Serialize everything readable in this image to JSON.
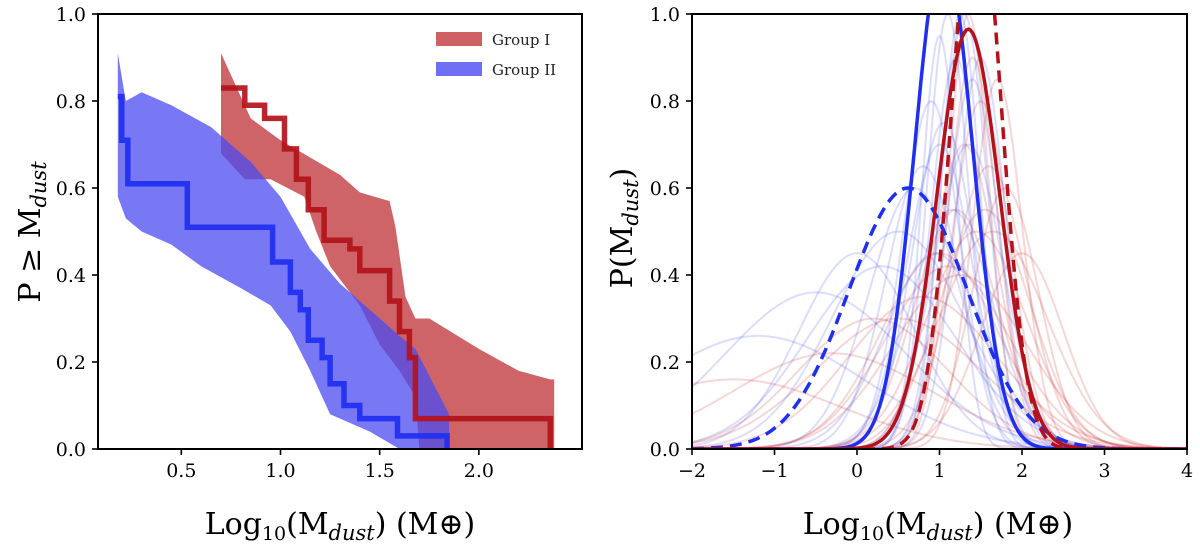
{
  "chart_data": [
    {
      "type": "line",
      "title": "",
      "xlabel": "Log10(Mdust) (M⊕)",
      "xlabel_parts": {
        "base": "Log",
        "sub": "10",
        "open": "(M",
        "italic_sub": "dust",
        "close": ") (M⊕)"
      },
      "ylabel": "P ≥ Mdust",
      "ylabel_parts": {
        "base": "P ≥ M",
        "italic_sub": "dust"
      },
      "xlim": [
        0.08,
        2.52
      ],
      "ylim": [
        0.0,
        1.0
      ],
      "xticks": [
        0.5,
        1.0,
        1.5,
        2.0
      ],
      "xtick_labels": [
        "0.5",
        "1.0",
        "1.5",
        "2.0"
      ],
      "yticks": [
        0.0,
        0.2,
        0.4,
        0.6,
        0.8,
        1.0
      ],
      "ytick_labels": [
        "0.0",
        "0.2",
        "0.4",
        "0.6",
        "0.8",
        "1.0"
      ],
      "legend_position": "top-right",
      "legend": [
        {
          "name": "Group I",
          "color": "#c0393c"
        },
        {
          "name": "Group II",
          "color": "#4b4bf2"
        }
      ],
      "series": [
        {
          "name": "Group I",
          "color": "#b3121a",
          "band_color": "#c0393c",
          "band_upper": [
            [
              0.7,
              0.91
            ],
            [
              0.85,
              0.76
            ],
            [
              1.0,
              0.71
            ],
            [
              1.15,
              0.67
            ],
            [
              1.3,
              0.63
            ],
            [
              1.4,
              0.59
            ],
            [
              1.55,
              0.57
            ],
            [
              1.58,
              0.51
            ],
            [
              1.63,
              0.35
            ],
            [
              1.68,
              0.3
            ],
            [
              1.75,
              0.3
            ],
            [
              2.0,
              0.23
            ],
            [
              2.2,
              0.18
            ],
            [
              2.36,
              0.16
            ],
            [
              2.38,
              0.16
            ],
            [
              2.38,
              0.0
            ]
          ],
          "band_lower": [
            [
              2.37,
              0.0
            ],
            [
              1.7,
              0.0
            ],
            [
              1.68,
              0.12
            ],
            [
              1.6,
              0.18
            ],
            [
              1.5,
              0.24
            ],
            [
              1.4,
              0.33
            ],
            [
              1.25,
              0.42
            ],
            [
              1.18,
              0.5
            ],
            [
              1.12,
              0.58
            ],
            [
              0.95,
              0.62
            ],
            [
              0.82,
              0.62
            ],
            [
              0.7,
              0.68
            ]
          ],
          "step_x": [
            0.7,
            0.7,
            0.82,
            0.82,
            0.92,
            0.92,
            1.02,
            1.02,
            1.08,
            1.08,
            1.14,
            1.14,
            1.22,
            1.22,
            1.35,
            1.35,
            1.4,
            1.4,
            1.55,
            1.55,
            1.6,
            1.6,
            1.65,
            1.65,
            1.68,
            1.68,
            2.36,
            2.36
          ],
          "step_y": [
            0.83,
            0.83,
            0.83,
            0.79,
            0.79,
            0.76,
            0.76,
            0.69,
            0.69,
            0.62,
            0.62,
            0.55,
            0.55,
            0.48,
            0.48,
            0.46,
            0.46,
            0.41,
            0.41,
            0.34,
            0.34,
            0.27,
            0.27,
            0.21,
            0.21,
            0.07,
            0.07,
            0.0
          ]
        },
        {
          "name": "Group II",
          "color": "#1f2ff0",
          "band_color": "#4b4bf2",
          "band_upper": [
            [
              0.18,
              0.91
            ],
            [
              0.22,
              0.8
            ],
            [
              0.3,
              0.82
            ],
            [
              0.45,
              0.79
            ],
            [
              0.65,
              0.74
            ],
            [
              0.85,
              0.66
            ],
            [
              1.0,
              0.58
            ],
            [
              1.15,
              0.46
            ],
            [
              1.3,
              0.38
            ],
            [
              1.45,
              0.32
            ],
            [
              1.6,
              0.26
            ],
            [
              1.68,
              0.23
            ],
            [
              1.85,
              0.08
            ],
            [
              1.85,
              0.0
            ]
          ],
          "band_lower": [
            [
              1.85,
              0.0
            ],
            [
              1.6,
              0.0
            ],
            [
              1.45,
              0.04
            ],
            [
              1.25,
              0.08
            ],
            [
              1.15,
              0.18
            ],
            [
              1.05,
              0.27
            ],
            [
              0.95,
              0.33
            ],
            [
              0.8,
              0.37
            ],
            [
              0.6,
              0.42
            ],
            [
              0.45,
              0.47
            ],
            [
              0.3,
              0.5
            ],
            [
              0.22,
              0.53
            ],
            [
              0.18,
              0.58
            ]
          ],
          "step_x": [
            0.18,
            0.18,
            0.2,
            0.2,
            0.23,
            0.23,
            0.53,
            0.53,
            0.96,
            0.96,
            1.05,
            1.05,
            1.1,
            1.1,
            1.14,
            1.14,
            1.21,
            1.21,
            1.25,
            1.25,
            1.32,
            1.32,
            1.4,
            1.4,
            1.59,
            1.59,
            1.84,
            1.84
          ],
          "step_y": [
            0.81,
            0.81,
            0.81,
            0.71,
            0.71,
            0.61,
            0.61,
            0.51,
            0.51,
            0.43,
            0.43,
            0.36,
            0.36,
            0.32,
            0.32,
            0.25,
            0.25,
            0.21,
            0.21,
            0.15,
            0.15,
            0.1,
            0.1,
            0.07,
            0.07,
            0.03,
            0.03,
            0.0
          ]
        }
      ]
    },
    {
      "type": "line",
      "title": "",
      "xlabel": "Log10(Mdust) (M⊕)",
      "xlabel_parts": {
        "base": "Log",
        "sub": "10",
        "open": "(M",
        "italic_sub": "dust",
        "close": ") (M⊕)"
      },
      "ylabel": "P(Mdust)",
      "ylabel_parts": {
        "base": "P(M",
        "italic_sub": "dust",
        "close": ")"
      },
      "xlim": [
        -2,
        4
      ],
      "ylim": [
        0.0,
        1.0
      ],
      "xticks": [
        -2,
        -1,
        0,
        1,
        2,
        3,
        4
      ],
      "xtick_labels": [
        "−2",
        "−1",
        "0",
        "1",
        "2",
        "3",
        "4"
      ],
      "yticks": [
        0.0,
        0.2,
        0.4,
        0.6,
        0.8,
        1.0
      ],
      "ytick_labels": [
        "0.0",
        "0.2",
        "0.4",
        "0.6",
        "0.8",
        "1.0"
      ],
      "faint_curves": {
        "blue": {
          "color": "#3a43e6",
          "mu": [
            1.0,
            1.1,
            1.2,
            0.9,
            0.8,
            1.3,
            1.4,
            1.0,
            1.15,
            1.25,
            0.95,
            1.05,
            0.5,
            0.3,
            -0.5,
            -1.2,
            0.0,
            1.5,
            1.35,
            0.7
          ],
          "sigma": [
            0.22,
            0.25,
            0.3,
            0.35,
            0.45,
            0.28,
            0.32,
            0.4,
            0.5,
            0.24,
            0.6,
            0.38,
            0.8,
            0.9,
            1.1,
            1.3,
            0.7,
            0.3,
            0.42,
            0.55
          ],
          "amp": [
            0.95,
            1.0,
            0.9,
            0.8,
            0.65,
            1.0,
            0.85,
            0.7,
            0.55,
            1.0,
            0.45,
            0.75,
            0.5,
            0.42,
            0.36,
            0.26,
            0.45,
            0.9,
            0.7,
            0.6
          ]
        },
        "red": {
          "color": "#c42424",
          "mu": [
            1.4,
            1.5,
            1.3,
            1.6,
            1.2,
            1.7,
            1.45,
            1.35,
            1.8,
            1.0,
            1.55,
            1.25,
            0.8,
            0.5,
            -0.3,
            -1.5,
            2.0,
            1.65,
            1.1,
            0.2
          ],
          "sigma": [
            0.3,
            0.35,
            0.4,
            0.45,
            0.5,
            0.3,
            0.6,
            0.25,
            0.4,
            0.7,
            0.55,
            0.8,
            0.9,
            1.0,
            1.2,
            1.3,
            0.5,
            0.65,
            0.75,
            0.9
          ],
          "amp": [
            0.9,
            0.8,
            0.7,
            0.65,
            0.55,
            0.85,
            0.5,
            1.0,
            0.6,
            0.45,
            0.55,
            0.4,
            0.35,
            0.3,
            0.22,
            0.16,
            0.45,
            0.5,
            0.42,
            0.3
          ]
        }
      },
      "series": [
        {
          "name": "blue-solid",
          "color": "#1f2ff0",
          "dash": false,
          "mu": 1.05,
          "sigma": 0.35,
          "amp": 1.15
        },
        {
          "name": "blue-dashed",
          "color": "#1f2ff0",
          "dash": true,
          "mu": 0.62,
          "sigma": 0.72,
          "amp": 0.6
        },
        {
          "name": "red-solid",
          "color": "#b3121a",
          "dash": false,
          "mu": 1.35,
          "sigma": 0.38,
          "amp": 0.965
        },
        {
          "name": "red-dashed",
          "color": "#b3121a",
          "dash": true,
          "mu": 1.45,
          "sigma": 0.3,
          "amp": 1.3
        }
      ]
    }
  ]
}
